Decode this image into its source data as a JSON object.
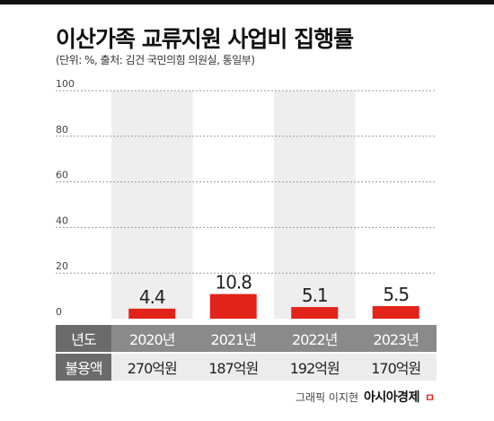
{
  "header": {
    "title": "이산가족 교류지원 사업비 집행률",
    "subtitle": "(단위: %, 출처: 김건 국민의힘 의원실, 통일부)"
  },
  "chart_data": {
    "type": "bar",
    "categories": [
      "2020년",
      "2021년",
      "2022년",
      "2023년"
    ],
    "values": [
      4.4,
      10.8,
      5.1,
      5.5
    ],
    "y_ticks": [
      "0",
      "20",
      "40",
      "60",
      "80",
      "100"
    ],
    "ylim": [
      0,
      100
    ],
    "grid": "dashed horizontal",
    "bar_color": "#e2231a",
    "column_band_color": "#eeeeee"
  },
  "table": {
    "year_header": "년도",
    "budget_header": "불용액",
    "budgets": [
      "270억원",
      "187억원",
      "192억원",
      "170억원"
    ]
  },
  "footer": {
    "credit": "그래픽 이지현",
    "brand": "아시아경제",
    "brand_mark": "ㅁ"
  }
}
